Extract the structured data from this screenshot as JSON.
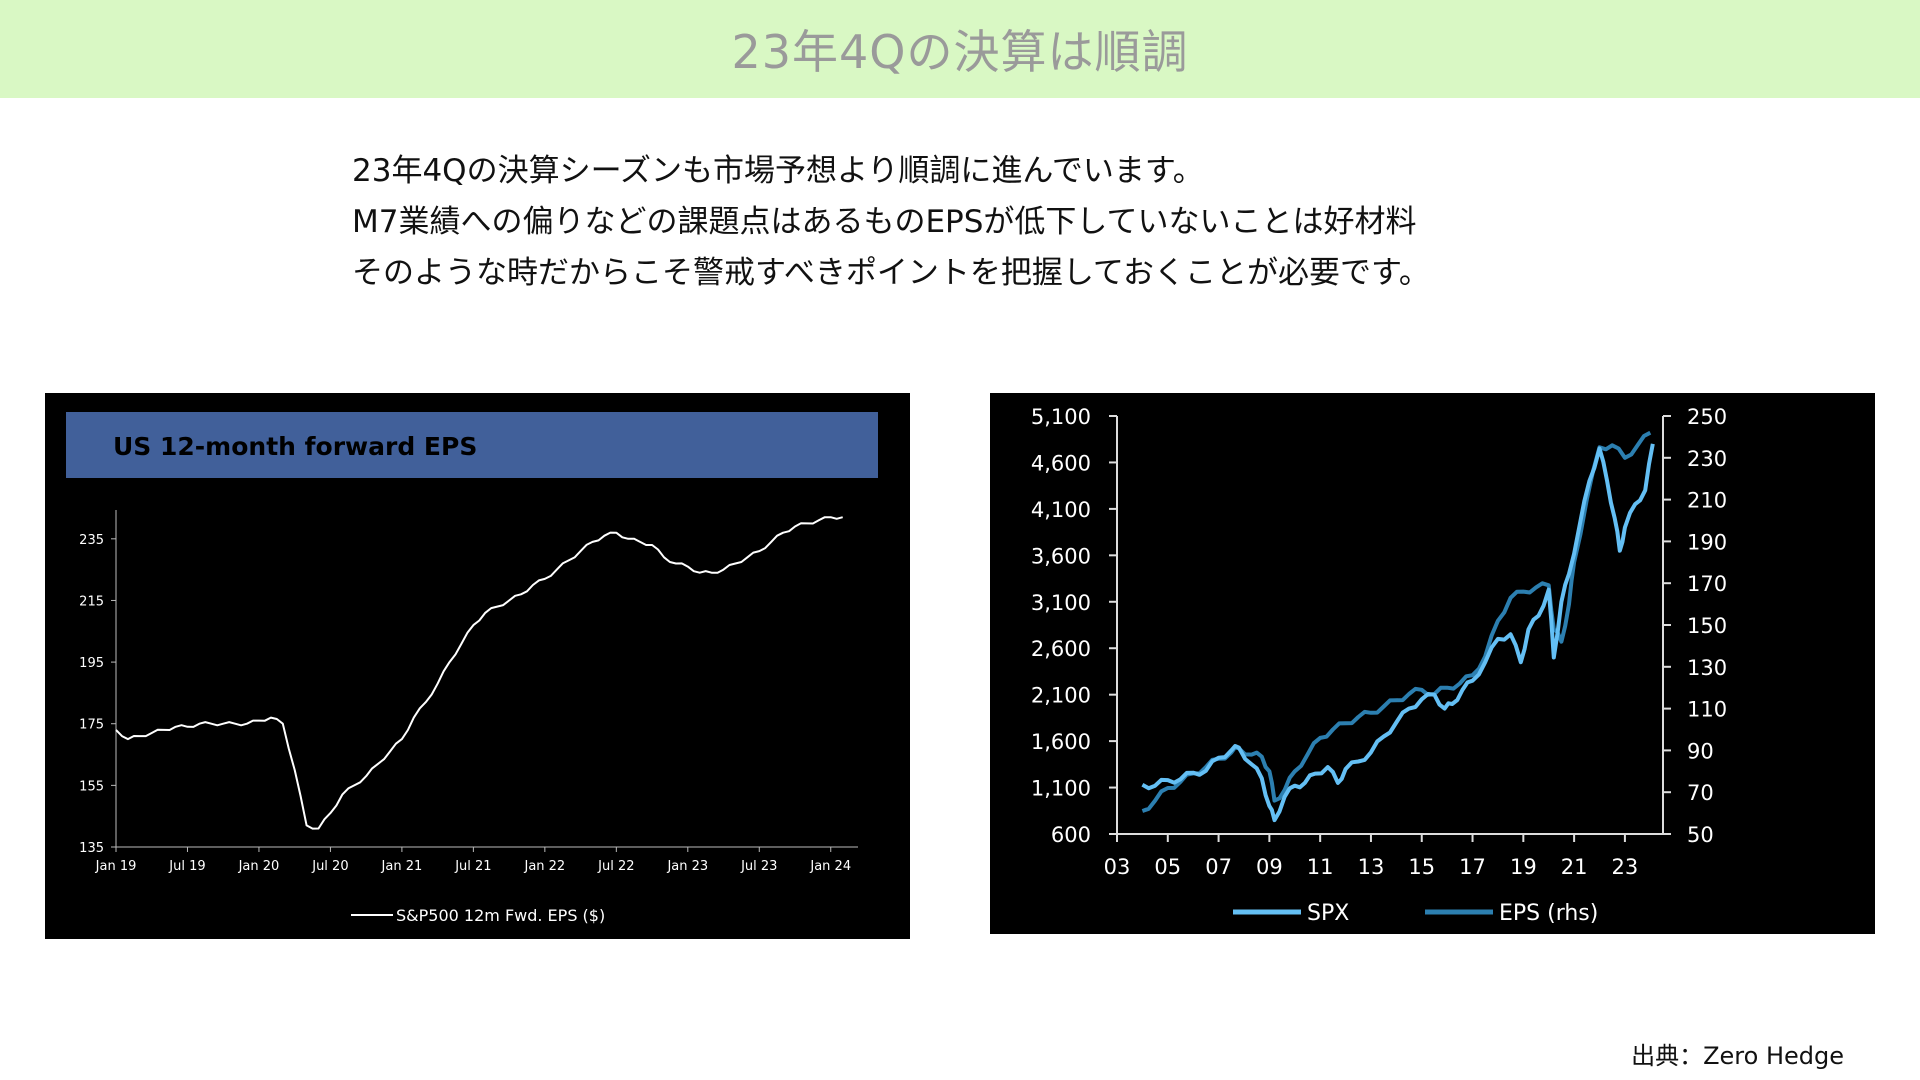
{
  "header": {
    "title": "23年4Qの決算は順調"
  },
  "body": {
    "lines": [
      "23年4Qの決算シーズンも市場予想より順調に進んでいます。",
      "M7業績への偏りなどの課題点はあるものEPSが低下していないことは好材料",
      "そのような時だからこそ警戒すべきポイントを把握しておくことが必要です。"
    ]
  },
  "source": "出典：Zero Hedge",
  "colors": {
    "title_bg": "#d9f8c4",
    "title_text": "#9a9a9a",
    "panel_bg": "#000000",
    "left_header_bg": "#41609a",
    "left_line": "#ffffff",
    "spx_line": "#64bff4",
    "eps_line": "#2c7fb0"
  },
  "chart_data": [
    {
      "type": "line",
      "title": "US 12-month forward EPS",
      "x_ticks": [
        "Jan 19",
        "Jul 19",
        "Jan 20",
        "Jul 20",
        "Jan 21",
        "Jul 21",
        "Jan 22",
        "Jul 22",
        "Jan 23",
        "Jul 23",
        "Jan 24"
      ],
      "y_ticks": [
        135,
        155,
        175,
        195,
        215,
        235
      ],
      "ylim": [
        135,
        245
      ],
      "xlim": [
        "2019-01",
        "2024-02"
      ],
      "legend": "bottom",
      "series": [
        {
          "name": "S&P500 12m Fwd. EPS ($)",
          "x": [
            "2019-01",
            "2019-02",
            "2019-03",
            "2019-04",
            "2019-05",
            "2019-06",
            "2019-07",
            "2019-08",
            "2019-09",
            "2019-10",
            "2019-11",
            "2019-12",
            "2020-01",
            "2020-02",
            "2020-03",
            "2020-04",
            "2020-05",
            "2020-06",
            "2020-07",
            "2020-08",
            "2020-09",
            "2020-10",
            "2020-11",
            "2020-12",
            "2021-01",
            "2021-02",
            "2021-03",
            "2021-04",
            "2021-05",
            "2021-06",
            "2021-07",
            "2021-08",
            "2021-09",
            "2021-10",
            "2021-11",
            "2021-12",
            "2022-01",
            "2022-02",
            "2022-03",
            "2022-04",
            "2022-05",
            "2022-06",
            "2022-07",
            "2022-08",
            "2022-09",
            "2022-10",
            "2022-11",
            "2022-12",
            "2023-01",
            "2023-02",
            "2023-03",
            "2023-04",
            "2023-05",
            "2023-06",
            "2023-07",
            "2023-08",
            "2023-09",
            "2023-10",
            "2023-11",
            "2023-12",
            "2024-01",
            "2024-02"
          ],
          "y": [
            173,
            170,
            171,
            172,
            173,
            174,
            174,
            175,
            175,
            175,
            175,
            175,
            176,
            177,
            175,
            160,
            142,
            141,
            146,
            152,
            155,
            158,
            162,
            166,
            170,
            177,
            182,
            188,
            195,
            201,
            207,
            211,
            213,
            215,
            217,
            220,
            222,
            225,
            228,
            231,
            234,
            236,
            237,
            235,
            234,
            233,
            229,
            227,
            226,
            224,
            224,
            225,
            227,
            229,
            231,
            234,
            237,
            239,
            240,
            241,
            242,
            242
          ]
        }
      ]
    },
    {
      "type": "line",
      "title": "",
      "x_ticks": [
        "03",
        "05",
        "07",
        "09",
        "11",
        "13",
        "15",
        "17",
        "19",
        "21",
        "23"
      ],
      "y_ticks_left": [
        "5,100",
        "4,600",
        "4,100",
        "3,600",
        "3,100",
        "2,600",
        "2,100",
        "1,600",
        "1,100",
        "600"
      ],
      "y_ticks_right": [
        250,
        230,
        210,
        190,
        170,
        150,
        130,
        110,
        90,
        70,
        50
      ],
      "ylim_left": [
        600,
        5100
      ],
      "ylim_right": [
        50,
        250
      ],
      "xlim": [
        2003,
        2024.5
      ],
      "legend": "bottom",
      "series": [
        {
          "name": "SPX",
          "axis": "left",
          "x": [
            2004.0,
            2004.5,
            2005.0,
            2005.5,
            2006.0,
            2006.5,
            2007.0,
            2007.5,
            2007.8,
            2008.3,
            2008.7,
            2009.0,
            2009.2,
            2009.6,
            2010.0,
            2010.4,
            2010.8,
            2011.3,
            2011.7,
            2012.0,
            2012.5,
            2013.0,
            2013.5,
            2014.0,
            2014.5,
            2015.0,
            2015.5,
            2015.9,
            2016.2,
            2016.6,
            2017.0,
            2017.5,
            2018.0,
            2018.5,
            2018.9,
            2019.2,
            2019.6,
            2020.0,
            2020.2,
            2020.5,
            2020.8,
            2021.2,
            2021.6,
            2022.0,
            2022.3,
            2022.6,
            2022.8,
            2023.0,
            2023.4,
            2023.8,
            2024.1
          ],
          "y": [
            1130,
            1120,
            1180,
            1190,
            1260,
            1280,
            1420,
            1500,
            1530,
            1350,
            1200,
            900,
            750,
            1000,
            1120,
            1150,
            1250,
            1320,
            1150,
            1300,
            1380,
            1480,
            1650,
            1800,
            1950,
            2050,
            2100,
            1950,
            2000,
            2150,
            2250,
            2450,
            2700,
            2750,
            2450,
            2800,
            2950,
            3230,
            2500,
            3100,
            3400,
            3900,
            4400,
            4750,
            4400,
            4000,
            3650,
            3900,
            4150,
            4300,
            4800
          ]
        },
        {
          "name": "EPS (rhs)",
          "axis": "right",
          "x": [
            2004.0,
            2004.5,
            2005.0,
            2005.5,
            2006.0,
            2006.5,
            2007.0,
            2007.5,
            2007.8,
            2008.3,
            2008.7,
            2009.0,
            2009.2,
            2009.6,
            2010.0,
            2010.5,
            2011.0,
            2011.5,
            2012.0,
            2012.5,
            2013.0,
            2013.5,
            2014.0,
            2014.5,
            2015.0,
            2015.5,
            2016.0,
            2016.5,
            2017.0,
            2017.5,
            2018.0,
            2018.5,
            2019.0,
            2019.5,
            2020.0,
            2020.2,
            2020.5,
            2020.8,
            2021.0,
            2021.5,
            2022.0,
            2022.5,
            2023.0,
            2023.5,
            2024.0
          ],
          "y": [
            61,
            66,
            72,
            75,
            79,
            82,
            86,
            89,
            91,
            88,
            87,
            80,
            66,
            71,
            80,
            88,
            96,
            100,
            103,
            106,
            108,
            111,
            114,
            117,
            119,
            117,
            120,
            122,
            126,
            135,
            152,
            163,
            166,
            168,
            169,
            148,
            142,
            160,
            180,
            210,
            235,
            236,
            230,
            236,
            242
          ]
        }
      ]
    }
  ]
}
